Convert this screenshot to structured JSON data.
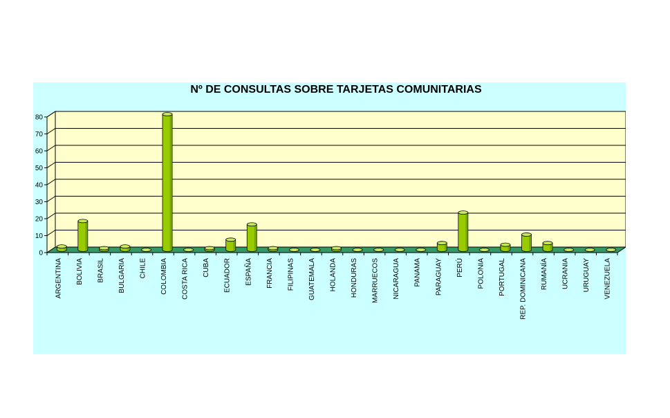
{
  "chart_data": {
    "type": "bar",
    "title": "Nº DE CONSULTAS SOBRE TARJETAS COMUNITARIAS",
    "xlabel": "",
    "ylabel": "",
    "ylim": [
      0,
      80
    ],
    "yticks": [
      "0",
      "10",
      "20",
      "30",
      "40",
      "50",
      "60",
      "70",
      "80"
    ],
    "grid": true,
    "legend": "none",
    "categories": [
      "ARGENTINA",
      "BOLIVIA",
      "BRASIL",
      "BULGARIA",
      "CHILE",
      "COLOMBIA",
      "COSTA RICA",
      "CUBA",
      "ECUADOR",
      "ESPAÑA",
      "FRANCIA",
      "FILIPINAS",
      "GUATEMALA",
      "HOLANDA",
      "HONDURAS",
      "MARRUECOS",
      "NICARAGUA",
      "PANAMA",
      "PARAGUAY",
      "PERÚ",
      "POLONIA",
      "PORTUGAL",
      "REP. DOMINICANA",
      "RUMANÍA",
      "UCRANIA",
      "URUGUAY",
      "VENEZUELA"
    ],
    "values": [
      2,
      17,
      1,
      2,
      0,
      80,
      0,
      1,
      6,
      15,
      1,
      0,
      0,
      1,
      0,
      0,
      0,
      0,
      4,
      22,
      0,
      3,
      9,
      4,
      0,
      0,
      0
    ]
  },
  "colors": {
    "background": "#ccffff",
    "plot_wall": "#ffffcc",
    "floor": "#339966",
    "bar": "#99cc00",
    "bar_top": "#c8e85a",
    "bar_shade": "#5a8a00"
  }
}
